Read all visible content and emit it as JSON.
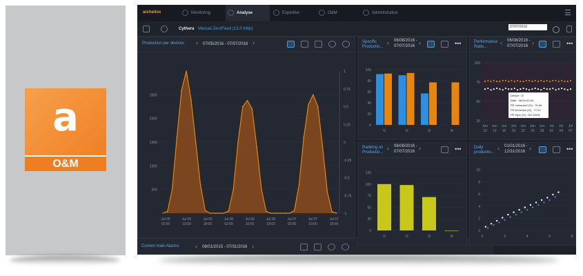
{
  "logo": {
    "letter": "a",
    "caption": "O&M"
  },
  "app": {
    "brand": "archelios",
    "tabs": [
      {
        "label": "Monitoring",
        "icon": "monitoring-icon"
      },
      {
        "label": "Analyse",
        "icon": "chart-icon",
        "active": true
      },
      {
        "label": "Expertise",
        "icon": "expertise-icon"
      },
      {
        "label": "O&M",
        "icon": "wrench-icon"
      },
      {
        "label": "Administration",
        "icon": "admin-icon"
      }
    ]
  },
  "subbar": {
    "site": "Cythera",
    "meta": "Manual ZeroFixed (13.0 kWp)",
    "date_value": "07/07/2016"
  },
  "panels": {
    "production": {
      "title": "Production per devices",
      "date_range": "07/05/2016 - 07/07/2016"
    },
    "specific": {
      "title": "Specific Productio...",
      "date_from": "06/08/2016 -",
      "date_to": "07/07/2016"
    },
    "performance": {
      "title": "Performance Ratio...",
      "date_from": "06/08/2016 -",
      "date_to": "07/07/2016"
    },
    "ranking": {
      "title": "Ranking on Productio...",
      "date_from": "06/08/2016 -",
      "date_to": "07/07/2016"
    },
    "daily": {
      "title": "Daily productio...",
      "date_from": "01/01/2016 -",
      "date_to": "12/31/2016"
    },
    "alarms": {
      "title": "Current main Alarms",
      "date_range": "08/01/2015 - 07/31/2016"
    }
  },
  "tooltip": {
    "lines": [
      "Device : I2",
      "Date : 06/16 02:00",
      "PR measured (%) : 76.56",
      "PR Archelios (%) : 77.03",
      "PR Pipe (%) : NO DATA"
    ]
  },
  "colors": {
    "accent_orange": "#e8850e",
    "accent_blue": "#2d8fe0",
    "yellow": "#c8c81a",
    "panel_bg": "#232833"
  },
  "chart_data": [
    {
      "type": "area",
      "title": "",
      "y_ticks_left": [
        "500",
        "1000",
        "1500",
        "2000",
        "2500"
      ],
      "y_ticks_right": [
        "1",
        "0.75",
        "0.5",
        "0.25",
        "0",
        "-0.25",
        "-0.5",
        "-0.75",
        "-1"
      ],
      "x_ticks": [
        [
          "Jul 05",
          "02:00"
        ],
        [
          "Jul 05",
          "10:00"
        ],
        [
          "Jul 05",
          "18:00"
        ],
        [
          "Jul 06",
          "02:00"
        ],
        [
          "Jul 06",
          "10:00"
        ],
        [
          "Jul 06",
          "18:00"
        ],
        [
          "Jul 07",
          "02:00"
        ],
        [
          "Jul 07",
          "10:00"
        ],
        [
          "Jul 07",
          "18:00"
        ]
      ],
      "ylim": [
        0,
        3000
      ],
      "series": [
        {
          "values": [
            0,
            40,
            500,
            1600,
            2600,
            3000,
            2400,
            1500,
            600,
            60,
            0,
            0,
            0,
            0,
            50,
            500,
            1500,
            2250,
            2380,
            2200,
            1400,
            500,
            40,
            0,
            0,
            0,
            0,
            0,
            60,
            600,
            1600,
            2300,
            2500,
            2250,
            1400,
            450,
            30,
            0
          ]
        }
      ]
    },
    {
      "type": "bar",
      "title": "",
      "categories": [
        "I1",
        "I2",
        "I3",
        "I4"
      ],
      "ylim": [
        0,
        100
      ],
      "y_ticks": [
        "0",
        "20",
        "40",
        "60",
        "80",
        "100"
      ],
      "series": [
        {
          "color": "#2d8fe0",
          "values": [
            92,
            90,
            57,
            0
          ]
        },
        {
          "color": "#e8850e",
          "values": [
            93,
            94,
            77,
            77
          ]
        }
      ]
    },
    {
      "type": "scatter",
      "title": "",
      "ylim": [
        25,
        100
      ],
      "y_ticks": [
        "25",
        "50",
        "75",
        "100"
      ],
      "x_ticks": [
        [
          "Jun",
          "10"
        ],
        [
          "Jun",
          "13"
        ],
        [
          "Jun",
          "16"
        ],
        [
          "Jun",
          "19"
        ],
        [
          "Jun",
          "22"
        ],
        [
          "Jun",
          "25"
        ],
        [
          "Jun",
          "28"
        ],
        [
          "Jul",
          "01"
        ],
        [
          "Jul",
          "04"
        ],
        [
          "Jul",
          "07"
        ]
      ],
      "series": [
        {
          "color": "#e8850e",
          "values": [
            76,
            77,
            76,
            77,
            76,
            76,
            77,
            77,
            76,
            77,
            76,
            77,
            76,
            76,
            77,
            77,
            76,
            77,
            76,
            77,
            76,
            77,
            76,
            77,
            77,
            76,
            77,
            76,
            76,
            77
          ]
        },
        {
          "color": "#ffffff",
          "values": [
            66,
            67,
            65,
            66,
            67,
            66,
            65,
            67,
            66,
            66,
            67,
            65,
            66,
            67,
            66,
            65,
            66,
            67,
            66,
            65,
            67,
            66,
            66,
            67,
            65,
            66,
            67,
            66,
            65,
            66
          ]
        }
      ]
    },
    {
      "type": "bar",
      "title": "",
      "categories": [
        "I1",
        "I2",
        "I3",
        "I4"
      ],
      "ylim": [
        0,
        125
      ],
      "y_ticks": [
        "0",
        "25",
        "50",
        "75",
        "100",
        "125"
      ],
      "values": [
        100,
        98,
        72,
        0
      ]
    },
    {
      "type": "scatter",
      "title": "",
      "xlim": [
        0,
        8
      ],
      "ylim": [
        0,
        10
      ],
      "x_ticks": [
        "0",
        "2",
        "4",
        "6",
        "8"
      ],
      "y_ticks": [
        "0",
        "2",
        "4",
        "6",
        "8",
        "10"
      ],
      "series": [
        {
          "color": "#ffffff",
          "points": [
            [
              0.3,
              0.6
            ],
            [
              0.8,
              1.1
            ],
            [
              1.3,
              1.6
            ],
            [
              1.8,
              2.1
            ],
            [
              2.3,
              2.6
            ],
            [
              2.8,
              3.0
            ],
            [
              3.3,
              3.4
            ],
            [
              3.8,
              3.8
            ],
            [
              4.3,
              4.2
            ],
            [
              4.8,
              4.6
            ],
            [
              5.3,
              5.0
            ],
            [
              5.8,
              5.4
            ],
            [
              6.3,
              5.9
            ],
            [
              6.8,
              6.3
            ]
          ]
        },
        {
          "color": "#4a79c8",
          "points": [
            [
              0.5,
              0.4
            ],
            [
              1.0,
              0.9
            ],
            [
              1.5,
              1.3
            ],
            [
              2.0,
              1.7
            ],
            [
              2.5,
              2.2
            ],
            [
              3.0,
              2.6
            ],
            [
              3.5,
              3.0
            ],
            [
              4.0,
              3.4
            ],
            [
              4.5,
              3.8
            ],
            [
              5.0,
              4.2
            ],
            [
              5.5,
              4.6
            ],
            [
              6.0,
              5.0
            ],
            [
              6.5,
              5.5
            ]
          ]
        }
      ]
    }
  ]
}
